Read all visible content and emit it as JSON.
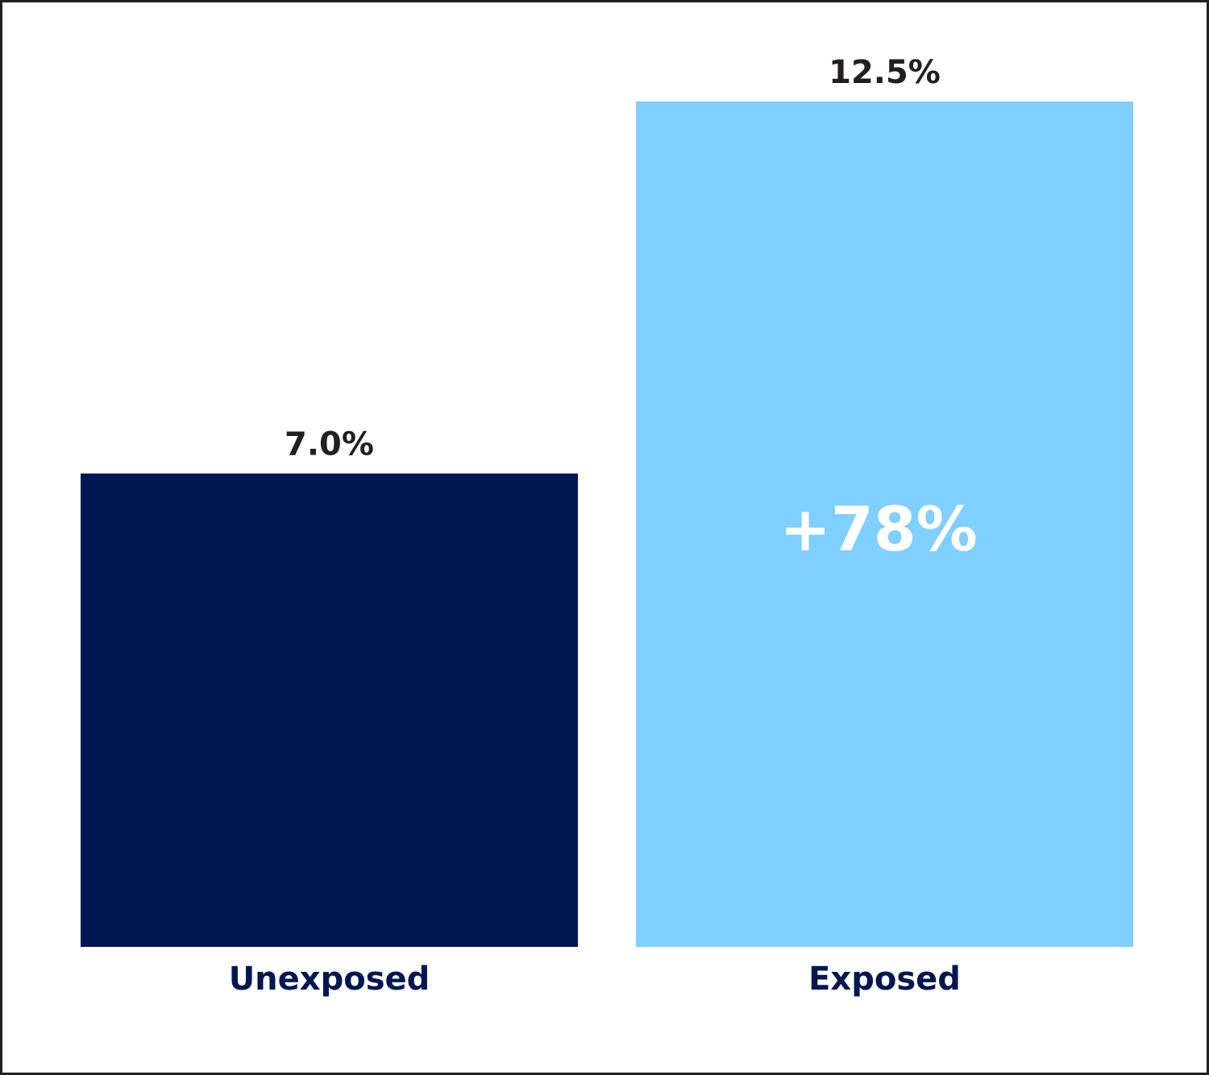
{
  "chart_data": {
    "type": "bar",
    "categories": [
      "Unexposed",
      "Exposed"
    ],
    "values": [
      7.0,
      12.5
    ],
    "value_labels": [
      "7.0%",
      "12.5%"
    ],
    "colors": [
      "#001752",
      "#7fcfff"
    ],
    "annotation": "+78%"
  }
}
